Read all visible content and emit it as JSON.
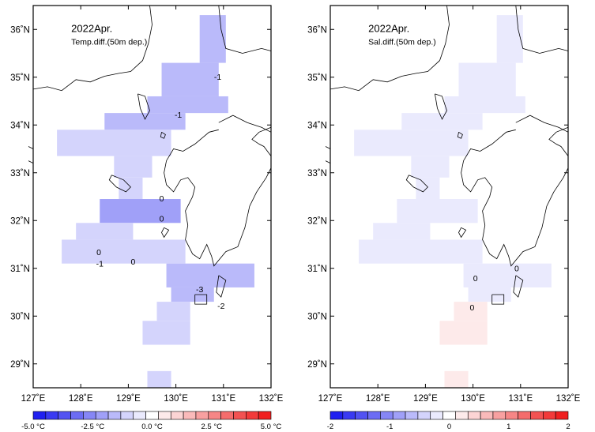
{
  "panels": [
    {
      "id": "temp",
      "title": "2022Apr.",
      "subtitle": "Temp.diff.(50m dep.)",
      "colorbar": {
        "colors": [
          "#2020f0",
          "#3a3af2",
          "#5252f2",
          "#6c6cf4",
          "#8686f6",
          "#a0a0f8",
          "#babafa",
          "#d4d4fc",
          "#eaeafd",
          "#ffffff",
          "#fdeaea",
          "#fcd4d4",
          "#fababa",
          "#f8a0a0",
          "#f68686",
          "#f46c6c",
          "#f25252",
          "#f23a3a",
          "#f02020"
        ],
        "labels": [
          {
            "text": "-5.0 °C",
            "value": -5.0
          },
          {
            "text": "-2.5 °C",
            "value": -2.5
          },
          {
            "text": "0.0 °C",
            "value": 0.0
          },
          {
            "text": "2.5 °C",
            "value": 2.5
          },
          {
            "text": "5.0 °C",
            "value": 5.0
          }
        ],
        "min": -5.0,
        "max": 5.0
      },
      "contour_labels": [
        {
          "text": "-1",
          "lon": 130.88,
          "lat": 34.95
        },
        {
          "text": "-1",
          "lon": 130.05,
          "lat": 34.15
        },
        {
          "text": "0",
          "lon": 129.7,
          "lat": 32.4
        },
        {
          "text": "0",
          "lon": 128.38,
          "lat": 31.28
        },
        {
          "text": "-1",
          "lon": 128.4,
          "lat": 31.04
        },
        {
          "text": "0",
          "lon": 129.1,
          "lat": 31.08
        },
        {
          "text": "0",
          "lon": 129.7,
          "lat": 31.98
        },
        {
          "text": "-3",
          "lon": 130.5,
          "lat": 30.5
        },
        {
          "text": "-2",
          "lon": 130.95,
          "lat": 30.15
        }
      ]
    },
    {
      "id": "sal",
      "title": "2022Apr.",
      "subtitle": "Sal.diff.(50m dep.)",
      "colorbar": {
        "colors": [
          "#2020f0",
          "#3a3af2",
          "#5252f2",
          "#6c6cf4",
          "#8686f6",
          "#a0a0f8",
          "#babafa",
          "#d4d4fc",
          "#eaeafd",
          "#ffffff",
          "#fdeaea",
          "#fcd4d4",
          "#fababa",
          "#f8a0a0",
          "#f68686",
          "#f46c6c",
          "#f25252",
          "#f23a3a",
          "#f02020"
        ],
        "labels": [
          {
            "text": "-2",
            "value": -2
          },
          {
            "text": "-1",
            "value": -1
          },
          {
            "text": "0",
            "value": 0
          },
          {
            "text": "1",
            "value": 1
          },
          {
            "text": "2",
            "value": 2
          }
        ],
        "min": -2,
        "max": 2
      },
      "contour_labels": [
        {
          "text": "0",
          "lon": 130.05,
          "lat": 30.73
        },
        {
          "text": "0",
          "lon": 130.92,
          "lat": 30.94
        },
        {
          "text": "0",
          "lon": 129.98,
          "lat": 30.12
        }
      ]
    }
  ],
  "axes": {
    "lon_ticks": [
      {
        "value": 127,
        "label": "127˚E"
      },
      {
        "value": 128,
        "label": "128˚E"
      },
      {
        "value": 129,
        "label": "129˚E"
      },
      {
        "value": 130,
        "label": "130˚E"
      },
      {
        "value": 131,
        "label": "131˚E"
      },
      {
        "value": 132,
        "label": "132˚E"
      }
    ],
    "lat_ticks": [
      {
        "value": 29,
        "label": "29˚N"
      },
      {
        "value": 30,
        "label": "30˚N"
      },
      {
        "value": 31,
        "label": "31˚N"
      },
      {
        "value": 32,
        "label": "32˚N"
      },
      {
        "value": 33,
        "label": "33˚N"
      },
      {
        "value": 34,
        "label": "34˚N"
      },
      {
        "value": 35,
        "label": "35˚N"
      },
      {
        "value": 36,
        "label": "36˚N"
      }
    ],
    "lon_range": [
      127,
      132
    ],
    "lat_range": [
      28.5,
      36.5
    ]
  },
  "colors": {
    "frame": "#000000",
    "land_outline": "#000000",
    "contour": "#333333"
  }
}
